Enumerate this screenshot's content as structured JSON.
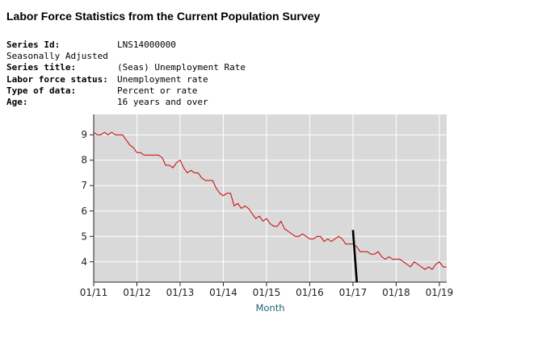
{
  "header": {
    "title": "Labor Force Statistics from the Current Population Survey"
  },
  "metadata": [
    {
      "label": "Series Id:",
      "value": "LNS14000000"
    },
    {
      "plain": "Seasonally Adjusted"
    },
    {
      "label": "Series title:",
      "value": "(Seas) Unemployment Rate"
    },
    {
      "label": "Labor force status:",
      "value": "Unemployment rate"
    },
    {
      "label": "Type of data:",
      "value": "Percent or rate"
    },
    {
      "label": "Age:",
      "value": "16 years and over"
    }
  ],
  "colors": {
    "series": "#cc0000",
    "plot_bg": "#d9d9d9",
    "grid": "#ffffff",
    "annotation": "#000000",
    "axis_title": "#1f5f7a"
  },
  "chart_data": {
    "type": "line",
    "title": "",
    "xlabel": "Month",
    "ylabel": "",
    "xlim": [
      2011.0,
      2019.17
    ],
    "ylim": [
      3.2,
      9.8
    ],
    "x_ticks": [
      {
        "value": 2011,
        "label": "01/11"
      },
      {
        "value": 2012,
        "label": "01/12"
      },
      {
        "value": 2013,
        "label": "01/13"
      },
      {
        "value": 2014,
        "label": "01/14"
      },
      {
        "value": 2015,
        "label": "01/15"
      },
      {
        "value": 2016,
        "label": "01/16"
      },
      {
        "value": 2017,
        "label": "01/17"
      },
      {
        "value": 2018,
        "label": "01/18"
      },
      {
        "value": 2019,
        "label": "01/19"
      }
    ],
    "y_ticks": [
      {
        "value": 4,
        "label": "4"
      },
      {
        "value": 5,
        "label": "5"
      },
      {
        "value": 6,
        "label": "6"
      },
      {
        "value": 7,
        "label": "7"
      },
      {
        "value": 8,
        "label": "8"
      },
      {
        "value": 9,
        "label": "9"
      }
    ],
    "grid": true,
    "series": [
      {
        "name": "(Seas) Unemployment Rate",
        "start": 2011.0,
        "step_months": 1,
        "values": [
          9.1,
          9.0,
          9.0,
          9.1,
          9.0,
          9.1,
          9.0,
          9.0,
          9.0,
          8.8,
          8.6,
          8.5,
          8.3,
          8.3,
          8.2,
          8.2,
          8.2,
          8.2,
          8.2,
          8.1,
          7.8,
          7.8,
          7.7,
          7.9,
          8.0,
          7.7,
          7.5,
          7.6,
          7.5,
          7.5,
          7.3,
          7.2,
          7.2,
          7.2,
          6.9,
          6.7,
          6.6,
          6.7,
          6.7,
          6.2,
          6.3,
          6.1,
          6.2,
          6.1,
          5.9,
          5.7,
          5.8,
          5.6,
          5.7,
          5.5,
          5.4,
          5.4,
          5.6,
          5.3,
          5.2,
          5.1,
          5.0,
          5.0,
          5.1,
          5.0,
          4.9,
          4.9,
          5.0,
          5.0,
          4.8,
          4.9,
          4.8,
          4.9,
          5.0,
          4.9,
          4.7,
          4.7,
          4.7,
          4.6,
          4.4,
          4.4,
          4.4,
          4.3,
          4.3,
          4.4,
          4.2,
          4.1,
          4.2,
          4.1,
          4.1,
          4.1,
          4.0,
          3.9,
          3.8,
          4.0,
          3.9,
          3.8,
          3.7,
          3.8,
          3.7,
          3.9,
          4.0,
          3.8,
          3.8
        ]
      }
    ],
    "annotations": [
      {
        "type": "line",
        "from": {
          "x": 2017.0,
          "y": 5.25
        },
        "to": {
          "x": 2017.09,
          "y": 3.2
        }
      }
    ]
  }
}
